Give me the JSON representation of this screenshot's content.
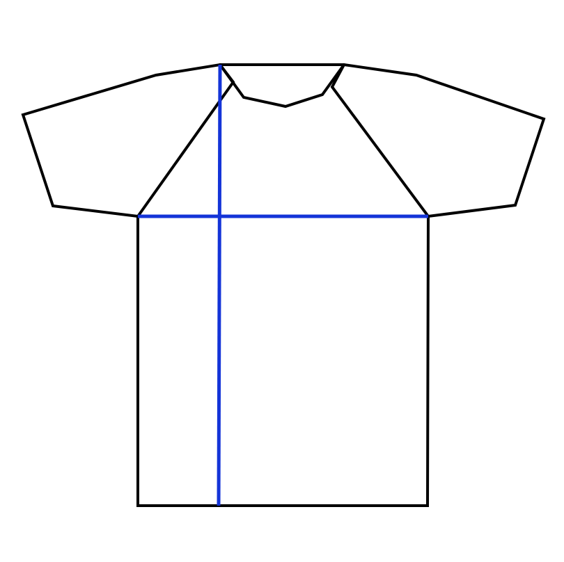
{
  "diagram": {
    "subject": "raglan-sleeve-t-shirt-outline",
    "colors": {
      "background": "#ffffff",
      "outline": "#000000",
      "measurement": "#1434d8"
    },
    "measurement_lines": [
      {
        "name": "chest-width-line",
        "orientation": "horizontal"
      },
      {
        "name": "body-length-line",
        "orientation": "vertical"
      }
    ]
  }
}
